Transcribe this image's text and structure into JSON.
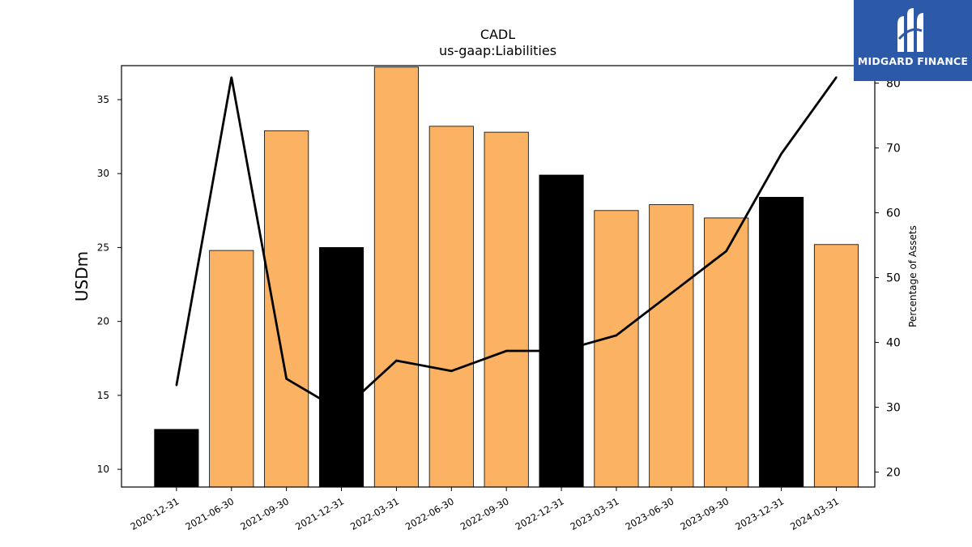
{
  "chart_data": {
    "type": "bar",
    "title": "CADL",
    "subtitle": "us-gaap:Liabilities",
    "ylabel": "USDm",
    "y2label": "Percentage of Assets",
    "categories": [
      "2020-12-31",
      "2021-06-30",
      "2021-09-30",
      "2021-12-31",
      "2022-03-31",
      "2022-06-30",
      "2022-09-30",
      "2022-12-31",
      "2023-03-31",
      "2023-06-30",
      "2023-09-30",
      "2023-12-31",
      "2024-03-31"
    ],
    "series": [
      {
        "values": [
          12.7,
          24.8,
          32.9,
          25.0,
          37.2,
          33.2,
          32.8,
          29.9,
          27.5,
          27.9,
          27.0,
          28.4,
          25.2
        ],
        "bar_colors": [
          "#000000",
          "#fbb262",
          "#fbb262",
          "#000000",
          "#fbb262",
          "#fbb262",
          "#fbb262",
          "#000000",
          "#fbb262",
          "#fbb262",
          "#fbb262",
          "#000000",
          "#fbb262"
        ]
      },
      {
        "axis": "right",
        "line_color": "#000000",
        "values": [
          33.4,
          80.9,
          34.4,
          29.4,
          37.2,
          35.6,
          38.7,
          38.7,
          41.1,
          47.6,
          54.1,
          69.1,
          80.9
        ]
      }
    ],
    "ylim": [
      8.8,
      37.3
    ],
    "y2lim": [
      17.7,
      82.7
    ],
    "yticks": [
      10,
      15,
      20,
      25,
      30,
      35
    ],
    "y2ticks": [
      20,
      30,
      40,
      50,
      60,
      70,
      80
    ],
    "grid": false
  },
  "logo": {
    "text": "MIDGARD FINANCE",
    "background": "#2c5aa8"
  }
}
